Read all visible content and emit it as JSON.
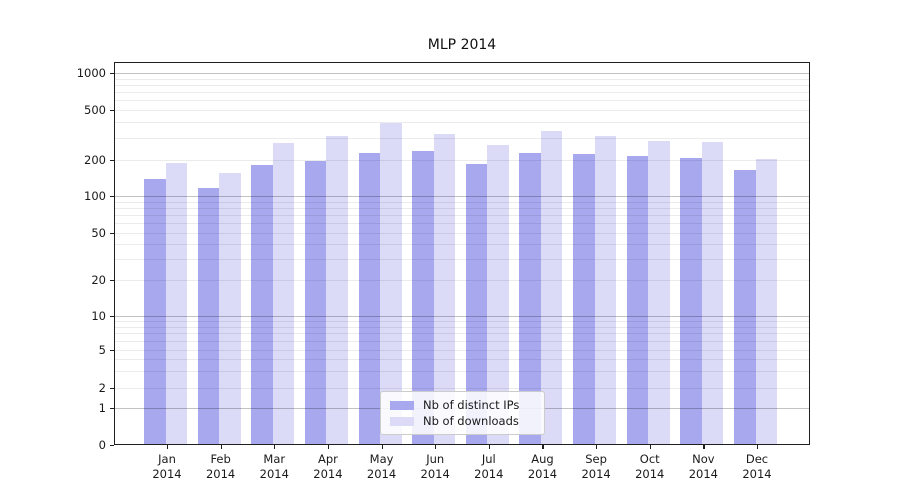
{
  "chart_data": {
    "type": "bar",
    "title": "MLP 2014",
    "categories": [
      "Jan",
      "Feb",
      "Mar",
      "Apr",
      "May",
      "Jun",
      "Jul",
      "Aug",
      "Sep",
      "Oct",
      "Nov",
      "Dec"
    ],
    "year_label": "2014",
    "series": [
      {
        "name": "Nb of distinct IPs",
        "color": "#a8a8ef",
        "values": [
          140,
          116,
          180,
          197,
          228,
          235,
          185,
          228,
          224,
          215,
          207,
          165
        ]
      },
      {
        "name": "Nb of downloads",
        "color": "#dbdbf8",
        "values": [
          190,
          155,
          275,
          310,
          395,
          325,
          265,
          340,
          310,
          282,
          276,
          202
        ]
      }
    ],
    "xlabel": "",
    "ylabel": "",
    "yscale": "log above 1, linear 0-1",
    "ylim": [
      0,
      1200
    ],
    "yticks": [
      1000,
      500,
      200,
      100,
      50,
      20,
      10,
      5,
      2,
      1,
      0
    ],
    "grid": "horizontal major and minor gridlines drawn over bars",
    "legend_position": "lower center inside plot"
  }
}
